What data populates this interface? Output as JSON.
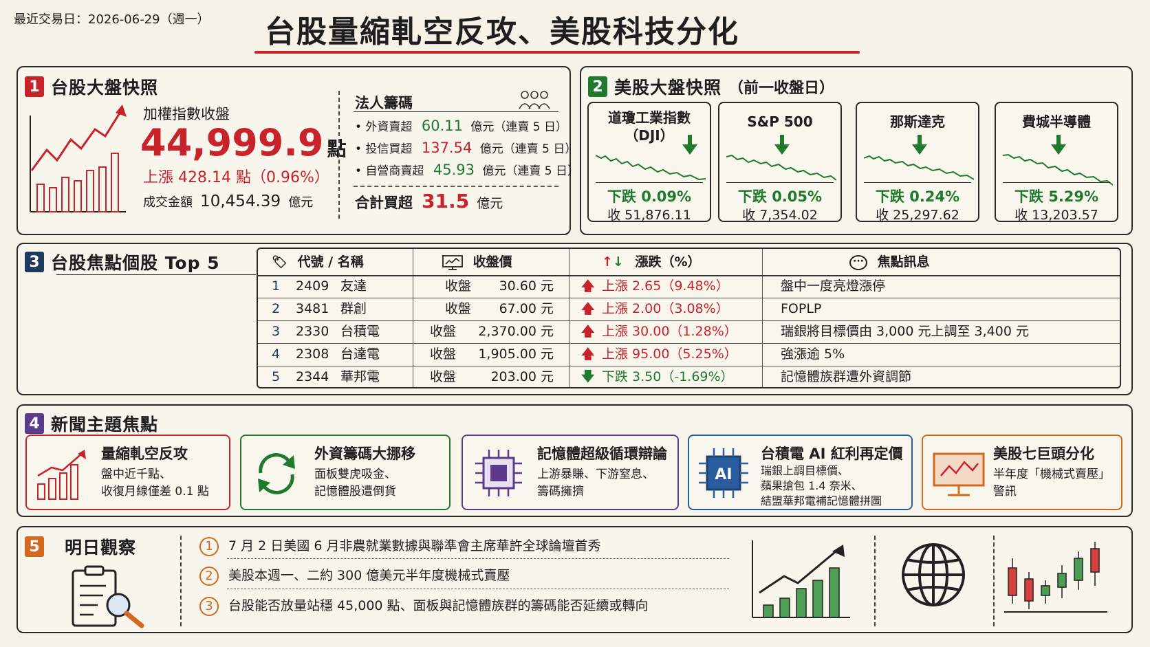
{
  "header": {
    "trade_date": "最近交易日：2026-06-29（週一）",
    "title": "台股量縮軋空反攻、美股科技分化"
  },
  "colors": {
    "red": "#c8222a",
    "green": "#1f7a2e",
    "navy": "#1f3a5f",
    "purple": "#5b3a8c",
    "blue": "#2a5d9f",
    "orange": "#d2691e"
  },
  "tw_market": {
    "num": "1",
    "title": "台股大盤快照",
    "index_label": "加權指數收盤",
    "index_value": "44,999.9",
    "index_unit": "點",
    "change": "上漲 428.14 點（0.96%）",
    "turnover_label": "成交金額",
    "turnover_value": "10,454.39",
    "turnover_unit": "億元",
    "chips_title": "法人籌碼",
    "chips": [
      {
        "label": "外資賣超",
        "value": "60.11",
        "unit": "億元（連賣 5 日）"
      },
      {
        "label": "投信買超",
        "value": "137.54",
        "unit": "億元（連賣 5 日）"
      },
      {
        "label": "自營商賣超",
        "value": "45.93",
        "unit": "億元（連賣 5 日）"
      }
    ],
    "total_label": "合計買超",
    "total_value": "31.5",
    "total_unit": "億元"
  },
  "us_market": {
    "num": "2",
    "title": "美股大盤快照",
    "subtitle": "（前一收盤日）",
    "cards": [
      {
        "name_line1": "道瓊工業指數",
        "name_line2": "（DJI）",
        "change": "下跌 0.09%",
        "close": "收 51,876.11"
      },
      {
        "name_line1": "S&P 500",
        "name_line2": "",
        "change": "下跌 0.05%",
        "close": "收 7,354.02"
      },
      {
        "name_line1": "那斯達克",
        "name_line2": "",
        "change": "下跌 0.24%",
        "close": "收 25,297.62"
      },
      {
        "name_line1": "費城半導體",
        "name_line2": "",
        "change": "下跌 5.29%",
        "close": "收 13,203.57"
      }
    ]
  },
  "focus_stocks": {
    "num": "3",
    "title": "台股焦點個股 Top 5",
    "headers": [
      "代號 / 名稱",
      "收盤價",
      "漲跌（%）",
      "焦點訊息"
    ],
    "rows": [
      {
        "rank": "1",
        "code": "2409",
        "name": "友達",
        "close_label": "收盤",
        "close": "30.60 元",
        "dir": "up",
        "change": "上漲 2.65（9.48%）",
        "info": "盤中一度亮燈漲停"
      },
      {
        "rank": "2",
        "code": "3481",
        "name": "群創",
        "close_label": "收盤",
        "close": "67.00 元",
        "dir": "up",
        "change": "上漲 2.00（3.08%）",
        "info": "FOPLP"
      },
      {
        "rank": "3",
        "code": "2330",
        "name": "台積電",
        "close_label": "收盤",
        "close": "2,370.00 元",
        "dir": "up",
        "change": "上漲 30.00（1.28%）",
        "info": "瑞銀將目標價由 3,000 元上調至 3,400 元"
      },
      {
        "rank": "4",
        "code": "2308",
        "name": "台達電",
        "close_label": "收盤",
        "close": "1,905.00 元",
        "dir": "up",
        "change": "上漲 95.00（5.25%）",
        "info": "強漲逾 5%"
      },
      {
        "rank": "5",
        "code": "2344",
        "name": "華邦電",
        "close_label": "收盤",
        "close": "203.00 元",
        "dir": "down",
        "change": "下跌 3.50（-1.69%）",
        "info": "記憶體族群遭外資調節"
      }
    ]
  },
  "news": {
    "num": "4",
    "title": "新聞主題焦點",
    "items": [
      {
        "title": "量縮軋空反攻",
        "line1": "盤中近千點、",
        "line2": "收復月線僅差 0.1 點",
        "line3": ""
      },
      {
        "title": "外資籌碼大挪移",
        "line1": "面板雙虎吸金、",
        "line2": "記憶體股遭倒貨",
        "line3": ""
      },
      {
        "title": "記憶體超級循環辯論",
        "line1": "上游暴賺、下游窒息、",
        "line2": "籌碼擁擠",
        "line3": ""
      },
      {
        "title": "台積電 AI 紅利再定價",
        "line1": "瑞銀上調目標價、",
        "line2": "蘋果搶包 1.4 奈米、",
        "line3": "結盟華邦電補記憶體拼圖"
      },
      {
        "title": "美股七巨頭分化",
        "line1": "半年度「機械式賣壓」",
        "line2": "警訊",
        "line3": ""
      }
    ]
  },
  "tomorrow": {
    "num": "5",
    "title": "明日觀察",
    "items": [
      {
        "n": "1",
        "text": "7 月 2 日美國 6 月非農就業數據與聯準會主席華許全球論壇首秀"
      },
      {
        "n": "2",
        "text": "美股本週一、二約 300 億美元半年度機械式賣壓"
      },
      {
        "n": "3",
        "text": "台股能否放量站穩 45,000 點、面板與記憶體族群的籌碼能否延續或轉向"
      }
    ]
  }
}
